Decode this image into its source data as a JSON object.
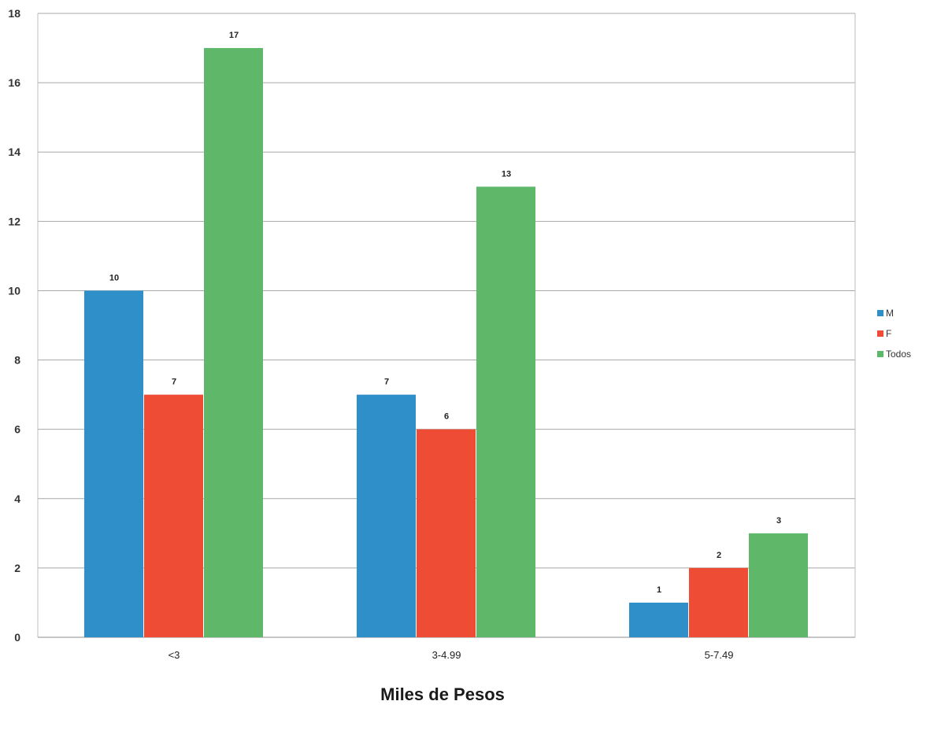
{
  "chart_data": {
    "type": "bar",
    "title": "",
    "xlabel": "Miles de Pesos",
    "ylabel": "",
    "categories": [
      "<3",
      "3-4.99",
      "5-7.49"
    ],
    "series": [
      {
        "name": "M",
        "values": [
          10,
          7,
          1
        ],
        "color": "#2f8fc8"
      },
      {
        "name": "F",
        "values": [
          7,
          6,
          2
        ],
        "color": "#ee4c35"
      },
      {
        "name": "Todos",
        "values": [
          17,
          13,
          3
        ],
        "color": "#5fb86a"
      }
    ],
    "ylim": [
      0,
      18
    ],
    "yticks": [
      0,
      2,
      4,
      6,
      8,
      10,
      12,
      14,
      16,
      18
    ],
    "grid": true,
    "data_labels": true,
    "legend": "right"
  }
}
